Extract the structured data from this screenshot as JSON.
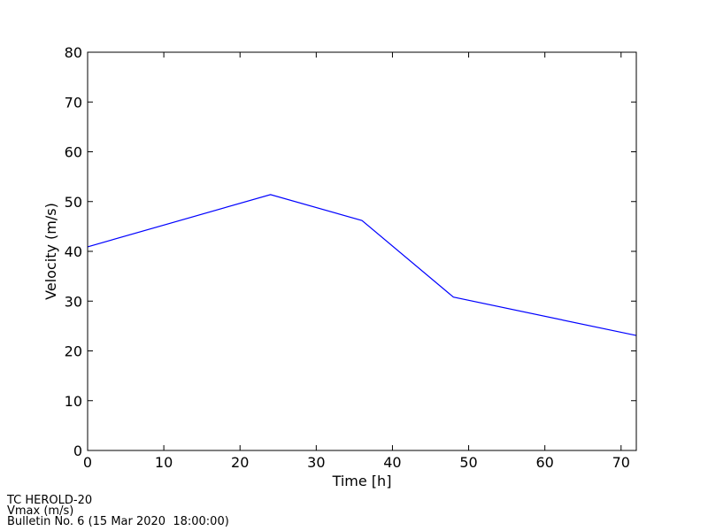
{
  "chart_data": {
    "type": "line",
    "xlabel": "Time [h]",
    "ylabel": "Velocity (m/s)",
    "x": [
      0,
      24,
      36,
      48,
      72
    ],
    "series": [
      {
        "name": "Vmax",
        "color": "#0000ff",
        "values": [
          40.9,
          51.4,
          46.2,
          30.8,
          23.1
        ]
      }
    ],
    "xlim": [
      0,
      72
    ],
    "ylim": [
      0,
      80
    ],
    "xticks": [
      0,
      10,
      20,
      30,
      40,
      50,
      60,
      70
    ],
    "yticks": [
      0,
      10,
      20,
      30,
      40,
      50,
      60,
      70,
      80
    ],
    "grid": false,
    "footer": [
      "TC HEROLD-20",
      "Vmax (m/s)",
      "Bulletin No. 6 (15 Mar 2020  18:00:00)"
    ]
  }
}
